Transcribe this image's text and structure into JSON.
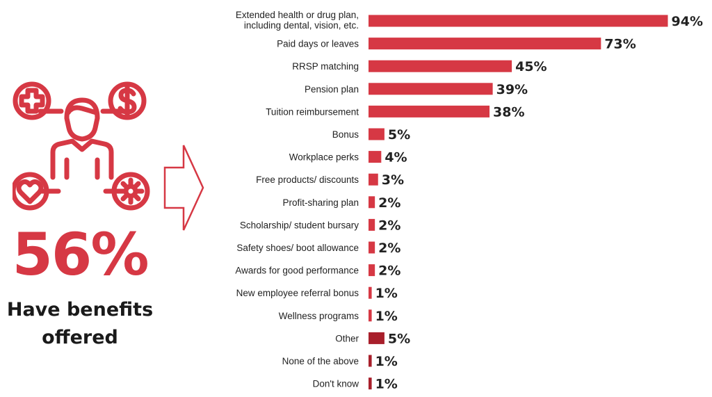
{
  "colors": {
    "accent": "#d63844",
    "accent_dark": "#a81f2b",
    "arrow_stroke": "#d63844",
    "text": "#222222"
  },
  "summary": {
    "percent": "56%",
    "caption_line1": "Have benefits",
    "caption_line2": "offered",
    "icons": [
      "medical-cross-icon",
      "dollar-icon",
      "person-icon",
      "heart-icon",
      "gear-icon",
      "right-arrow-icon"
    ]
  },
  "chart_data": {
    "type": "bar",
    "orientation": "horizontal",
    "title": "",
    "xlabel": "",
    "ylabel": "",
    "xlim": [
      0,
      100
    ],
    "grid": false,
    "categories": [
      [
        "Extended health or drug plan,",
        "including dental, vision, etc."
      ],
      [
        "Paid days or leaves"
      ],
      [
        "RRSP matching"
      ],
      [
        "Pension plan"
      ],
      [
        "Tuition reimbursement"
      ],
      [
        "Bonus"
      ],
      [
        "Workplace perks"
      ],
      [
        "Free products/ discounts"
      ],
      [
        "Profit-sharing plan"
      ],
      [
        "Scholarship/ student bursary"
      ],
      [
        "Safety shoes/ boot allowance"
      ],
      [
        "Awards for good performance"
      ],
      [
        "New employee referral bonus"
      ],
      [
        "Wellness programs"
      ],
      [
        "Other"
      ],
      [
        "None of the above"
      ],
      [
        "Don't know"
      ]
    ],
    "values": [
      94,
      73,
      45,
      39,
      38,
      5,
      4,
      3,
      2,
      2,
      2,
      2,
      1,
      1,
      5,
      1,
      1
    ],
    "value_labels": [
      "94%",
      "73%",
      "45%",
      "39%",
      "38%",
      "5%",
      "4%",
      "3%",
      "2%",
      "2%",
      "2%",
      "2%",
      "1%",
      "1%",
      "5%",
      "1%",
      "1%"
    ],
    "bar_colors": [
      "accent",
      "accent",
      "accent",
      "accent",
      "accent",
      "accent",
      "accent",
      "accent",
      "accent",
      "accent",
      "accent",
      "accent",
      "accent",
      "accent",
      "accent_dark",
      "accent_dark",
      "accent_dark"
    ]
  }
}
